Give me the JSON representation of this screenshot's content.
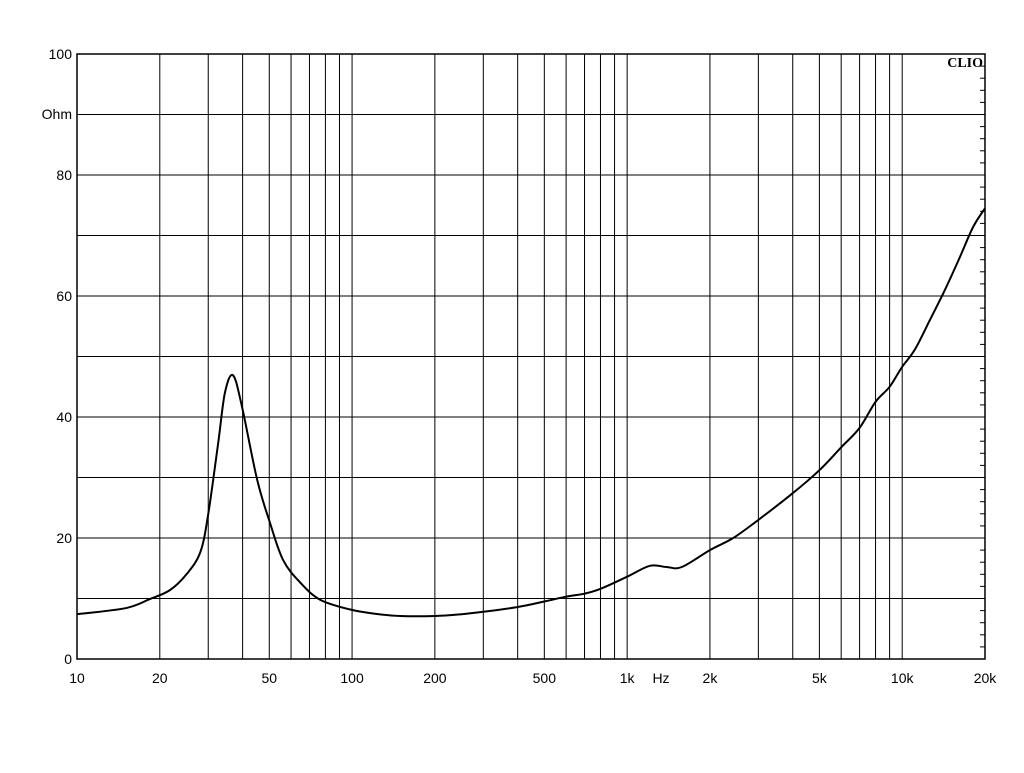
{
  "chart_data": {
    "type": "line",
    "title": "",
    "brand": "CLIO",
    "xlabel": "Hz",
    "ylabel": "Ohm",
    "xscale": "log",
    "xlim": [
      10,
      20000
    ],
    "ylim": [
      0,
      100
    ],
    "grid": true,
    "x_tick_labels": [
      {
        "value": 10,
        "label": "10"
      },
      {
        "value": 20,
        "label": "20"
      },
      {
        "value": 50,
        "label": "50"
      },
      {
        "value": 100,
        "label": "100"
      },
      {
        "value": 200,
        "label": "200"
      },
      {
        "value": 500,
        "label": "500"
      },
      {
        "value": 1000,
        "label": "1k"
      },
      {
        "value": 2000,
        "label": "2k"
      },
      {
        "value": 5000,
        "label": "5k"
      },
      {
        "value": 10000,
        "label": "10k"
      },
      {
        "value": 20000,
        "label": "20k"
      }
    ],
    "y_tick_labels": [
      {
        "value": 0,
        "label": "0"
      },
      {
        "value": 20,
        "label": "20"
      },
      {
        "value": 40,
        "label": "40"
      },
      {
        "value": 60,
        "label": "60"
      },
      {
        "value": 80,
        "label": "80"
      },
      {
        "value": 100,
        "label": "100"
      }
    ],
    "series": [
      {
        "color": "#000000",
        "x": [
          10,
          15,
          18.4,
          21.8,
          25,
          28,
          29.9,
          32.6,
          34.5,
          36.9,
          39.8,
          45.2,
          50.3,
          56.1,
          64.6,
          76.5,
          98,
          120,
          150,
          200,
          250,
          300,
          400,
          500,
          600,
          700,
          800,
          1000,
          1210,
          1390,
          1580,
          2000,
          2430,
          3000,
          4000,
          5000,
          6000,
          7000,
          8000,
          9000,
          10000,
          11100,
          12600,
          14300,
          16200,
          18100,
          20000
        ],
        "y": [
          7.4,
          8.4,
          9.9,
          11.4,
          14.0,
          17.5,
          23.5,
          35.7,
          44.0,
          46.9,
          41.7,
          29.6,
          22.5,
          16.4,
          12.7,
          9.8,
          8.2,
          7.5,
          7.1,
          7.1,
          7.4,
          7.8,
          8.6,
          9.5,
          10.3,
          10.8,
          11.6,
          13.6,
          15.4,
          15.2,
          15.2,
          18.0,
          20.0,
          23.0,
          27.4,
          31.2,
          35.0,
          38.2,
          42.5,
          45.0,
          48.3,
          51.1,
          56.0,
          61.0,
          66.4,
          71.4,
          74.5
        ]
      }
    ]
  }
}
